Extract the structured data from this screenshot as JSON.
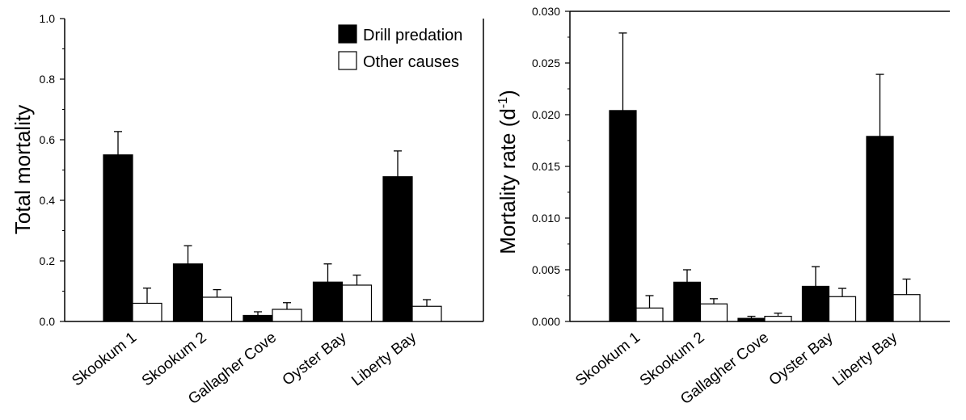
{
  "chart_data": [
    {
      "type": "bar",
      "title": "",
      "xlabel": "",
      "ylabel": "Total mortality",
      "ylim": [
        0,
        1.0
      ],
      "yticks": [
        0.0,
        0.2,
        0.4,
        0.6,
        0.8,
        1.0
      ],
      "ytick_labels": [
        "0.0",
        "0.2",
        "0.4",
        "0.6",
        "0.8",
        "1.0"
      ],
      "categories": [
        "Skookum 1",
        "Skookum 2",
        "Gallagher Cove",
        "Oyster Bay",
        "Liberty Bay"
      ],
      "series": [
        {
          "name": "Drill predation",
          "color": "#000000",
          "values": [
            0.55,
            0.19,
            0.02,
            0.13,
            0.478
          ],
          "errors": [
            0.077,
            0.06,
            0.012,
            0.06,
            0.085
          ]
        },
        {
          "name": "Other causes",
          "color": "#ffffff",
          "values": [
            0.06,
            0.08,
            0.04,
            0.12,
            0.05
          ],
          "errors": [
            0.05,
            0.025,
            0.022,
            0.033,
            0.022
          ]
        }
      ],
      "legend": {
        "position": "top-right",
        "show": true
      },
      "grid": false
    },
    {
      "type": "bar",
      "title": "",
      "xlabel": "",
      "ylabel": "Mortality rate (d",
      "ylabel_superscript": "-1",
      "ylabel_suffix": ")",
      "ylim": [
        0,
        0.03
      ],
      "yticks": [
        0.0,
        0.005,
        0.01,
        0.015,
        0.02,
        0.025,
        0.03
      ],
      "ytick_labels": [
        "0.000",
        "0.005",
        "0.010",
        "0.015",
        "0.020",
        "0.025",
        "0.030"
      ],
      "categories": [
        "Skookum 1",
        "Skookum 2",
        "Gallagher Cove",
        "Oyster Bay",
        "Liberty Bay"
      ],
      "series": [
        {
          "name": "Drill predation",
          "color": "#000000",
          "values": [
            0.0204,
            0.0038,
            0.0003,
            0.0034,
            0.0179
          ],
          "errors": [
            0.0075,
            0.0012,
            0.0002,
            0.0019,
            0.006
          ]
        },
        {
          "name": "Other causes",
          "color": "#ffffff",
          "values": [
            0.0013,
            0.0017,
            0.0005,
            0.0024,
            0.0026
          ],
          "errors": [
            0.0012,
            0.0005,
            0.0003,
            0.0008,
            0.0015
          ]
        }
      ],
      "legend": {
        "show": false
      },
      "grid": false
    }
  ]
}
